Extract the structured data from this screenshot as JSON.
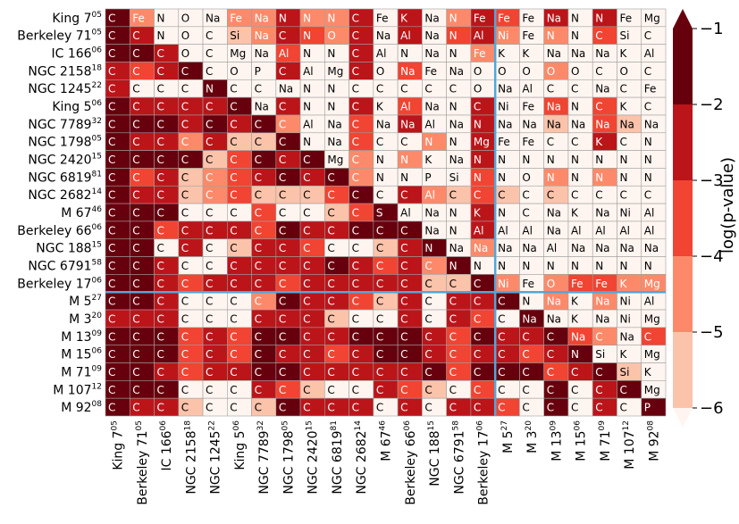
{
  "chart_data": {
    "type": "heatmap",
    "title": "",
    "colorbar_label": "log(p-value)",
    "colorbar_ticks": [
      "−1",
      "−2",
      "−3",
      "−4",
      "−5",
      "−6"
    ],
    "colorbar_levels": [
      -1,
      -2,
      -3,
      -4,
      -5,
      -6
    ],
    "colors": [
      "#67000d",
      "#bb151a",
      "#f14432",
      "#fc8a6a",
      "#fcc3ab",
      "#fff5f0"
    ],
    "divider_color": "#4ea8dc",
    "dark_text_color": "#000000",
    "light_text_color": "#ffffff",
    "row_labels": [
      {
        "name": "King 7",
        "sup": "05"
      },
      {
        "name": "Berkeley 71",
        "sup": "05"
      },
      {
        "name": "IC 166",
        "sup": "06"
      },
      {
        "name": "NGC 2158",
        "sup": "18"
      },
      {
        "name": "NGC 1245",
        "sup": "22"
      },
      {
        "name": "King 5",
        "sup": "06"
      },
      {
        "name": "NGC 7789",
        "sup": "32"
      },
      {
        "name": "NGC 1798",
        "sup": "05"
      },
      {
        "name": "NGC 2420",
        "sup": "15"
      },
      {
        "name": "NGC 6819",
        "sup": "81"
      },
      {
        "name": "NGC 2682",
        "sup": "14"
      },
      {
        "name": "M 67",
        "sup": "46"
      },
      {
        "name": "Berkeley 66",
        "sup": "06"
      },
      {
        "name": "NGC 188",
        "sup": "15"
      },
      {
        "name": "NGC 6791",
        "sup": "58"
      },
      {
        "name": "Berkeley 17",
        "sup": "06"
      },
      {
        "name": "M 5",
        "sup": "27"
      },
      {
        "name": "M 3",
        "sup": "20"
      },
      {
        "name": "M 13",
        "sup": "09"
      },
      {
        "name": "M 15",
        "sup": "06"
      },
      {
        "name": "M 71",
        "sup": "09"
      },
      {
        "name": "M 107",
        "sup": "12"
      },
      {
        "name": "M 92",
        "sup": "08"
      }
    ],
    "col_labels": [
      {
        "name": "King 7",
        "sup": "05"
      },
      {
        "name": "Berkeley 71",
        "sup": "05"
      },
      {
        "name": "IC 166",
        "sup": "06"
      },
      {
        "name": "NGC 2158",
        "sup": "18"
      },
      {
        "name": "NGC 1245",
        "sup": "22"
      },
      {
        "name": "King 5",
        "sup": "06"
      },
      {
        "name": "NGC 7789",
        "sup": "32"
      },
      {
        "name": "NGC 1798",
        "sup": "05"
      },
      {
        "name": "NGC 2420",
        "sup": "15"
      },
      {
        "name": "NGC 6819",
        "sup": "81"
      },
      {
        "name": "NGC 2682",
        "sup": "14"
      },
      {
        "name": "M 67",
        "sup": "46"
      },
      {
        "name": "Berkeley 66",
        "sup": "06"
      },
      {
        "name": "NGC 188",
        "sup": "15"
      },
      {
        "name": "NGC 6791",
        "sup": "58"
      },
      {
        "name": "Berkeley 17",
        "sup": "06"
      },
      {
        "name": "M 5",
        "sup": "27"
      },
      {
        "name": "M 3",
        "sup": "20"
      },
      {
        "name": "M 13",
        "sup": "09"
      },
      {
        "name": "M 15",
        "sup": "06"
      },
      {
        "name": "M 71",
        "sup": "09"
      },
      {
        "name": "M 107",
        "sup": "12"
      },
      {
        "name": "M 92",
        "sup": "08"
      }
    ],
    "cell_labels": [
      [
        "C",
        "Fe",
        "N",
        "O",
        "Na",
        "Fe",
        "Na",
        "N",
        "N",
        "N",
        "C",
        "Fe",
        "K",
        "Na",
        "N",
        "Fe",
        "Fe",
        "Fe",
        "Na",
        "N",
        "N",
        "Fe",
        "Mg"
      ],
      [
        "C",
        "C",
        "N",
        "O",
        "C",
        "Si",
        "Na",
        "C",
        "N",
        "O",
        "C",
        "Na",
        "Al",
        "Na",
        "N",
        "Al",
        "Ni",
        "Fe",
        "N",
        "N",
        "C",
        "Si",
        "C"
      ],
      [
        "C",
        "C",
        "C",
        "O",
        "C",
        "Mg",
        "Na",
        "Al",
        "N",
        "N",
        "C",
        "Al",
        "N",
        "Na",
        "N",
        "Fe",
        "K",
        "K",
        "Na",
        "Na",
        "Na",
        "K",
        "Al"
      ],
      [
        "C",
        "C",
        "C",
        "C",
        "C",
        "O",
        "P",
        "C",
        "Al",
        "Mg",
        "C",
        "O",
        "Na",
        "Fe",
        "Na",
        "O",
        "O",
        "O",
        "O",
        "O",
        "C",
        "O",
        "C"
      ],
      [
        "C",
        "C",
        "C",
        "C",
        "N",
        "C",
        "C",
        "Na",
        "N",
        "N",
        "C",
        "C",
        "C",
        "C",
        "C",
        "O",
        "Na",
        "Al",
        "C",
        "C",
        "Na",
        "C",
        "Fe"
      ],
      [
        "C",
        "C",
        "C",
        "C",
        "C",
        "C",
        "Na",
        "C",
        "N",
        "N",
        "C",
        "K",
        "Al",
        "Na",
        "N",
        "C",
        "Ni",
        "Fe",
        "Na",
        "N",
        "C",
        "K",
        "C"
      ],
      [
        "C",
        "C",
        "C",
        "C",
        "C",
        "C",
        "C",
        "C",
        "Al",
        "Na",
        "C",
        "Na",
        "Na",
        "Al",
        "Na",
        "N",
        "Na",
        "Na",
        "Na",
        "Na",
        "Na",
        "Na",
        "Na"
      ],
      [
        "C",
        "C",
        "C",
        "C",
        "C",
        "C",
        "C",
        "C",
        "N",
        "Na",
        "C",
        "C",
        "C",
        "N",
        "N",
        "Mg",
        "Fe",
        "Fe",
        "C",
        "C",
        "K",
        "C",
        "N"
      ],
      [
        "C",
        "C",
        "C",
        "C",
        "C",
        "C",
        "C",
        "C",
        "C",
        "Mg",
        "C",
        "N",
        "N",
        "K",
        "Na",
        "N",
        "N",
        "N",
        "N",
        "N",
        "N",
        "N",
        "N"
      ],
      [
        "C",
        "C",
        "C",
        "C",
        "C",
        "C",
        "C",
        "C",
        "C",
        "C",
        "C",
        "N",
        "N",
        "P",
        "Si",
        "N",
        "N",
        "O",
        "N",
        "N",
        "N",
        "N",
        "N"
      ],
      [
        "C",
        "C",
        "C",
        "C",
        "C",
        "C",
        "C",
        "C",
        "C",
        "C",
        "C",
        "C",
        "C",
        "Al",
        "C",
        "C",
        "C",
        "C",
        "C",
        "C",
        "C",
        "C",
        "C"
      ],
      [
        "C",
        "C",
        "C",
        "C",
        "C",
        "C",
        "C",
        "C",
        "C",
        "C",
        "C",
        "S",
        "Al",
        "Na",
        "N",
        "K",
        "N",
        "C",
        "Na",
        "K",
        "Na",
        "Ni",
        "Al"
      ],
      [
        "C",
        "C",
        "C",
        "C",
        "C",
        "C",
        "C",
        "C",
        "C",
        "C",
        "C",
        "C",
        "C",
        "Na",
        "N",
        "Al",
        "Al",
        "Al",
        "Na",
        "Al",
        "Al",
        "Al",
        "Al"
      ],
      [
        "C",
        "C",
        "C",
        "C",
        "C",
        "C",
        "C",
        "C",
        "C",
        "C",
        "C",
        "C",
        "C",
        "N",
        "Na",
        "Na",
        "Na",
        "Na",
        "Al",
        "Na",
        "Na",
        "Na",
        "Na"
      ],
      [
        "C",
        "C",
        "C",
        "C",
        "C",
        "C",
        "C",
        "C",
        "C",
        "C",
        "C",
        "C",
        "C",
        "C",
        "N",
        "N",
        "N",
        "N",
        "N",
        "N",
        "N",
        "N",
        "N"
      ],
      [
        "C",
        "C",
        "C",
        "C",
        "C",
        "C",
        "C",
        "C",
        "C",
        "C",
        "C",
        "C",
        "C",
        "C",
        "C",
        "C",
        "Ni",
        "Fe",
        "O",
        "Fe",
        "Fe",
        "K",
        "Mg"
      ],
      [
        "C",
        "C",
        "C",
        "C",
        "C",
        "C",
        "C",
        "C",
        "C",
        "C",
        "C",
        "C",
        "C",
        "C",
        "C",
        "C",
        "C",
        "N",
        "Na",
        "K",
        "Na",
        "Ni",
        "Al"
      ],
      [
        "C",
        "C",
        "C",
        "C",
        "C",
        "C",
        "C",
        "C",
        "C",
        "C",
        "C",
        "C",
        "C",
        "C",
        "C",
        "C",
        "C",
        "Na",
        "Na",
        "K",
        "Na",
        "Ni",
        "Mg"
      ],
      [
        "C",
        "C",
        "C",
        "C",
        "C",
        "C",
        "C",
        "C",
        "C",
        "C",
        "C",
        "C",
        "C",
        "C",
        "C",
        "C",
        "C",
        "C",
        "C",
        "Na",
        "C",
        "Na",
        "C"
      ],
      [
        "C",
        "C",
        "C",
        "C",
        "C",
        "C",
        "C",
        "C",
        "C",
        "C",
        "C",
        "C",
        "C",
        "C",
        "C",
        "C",
        "C",
        "C",
        "C",
        "N",
        "Si",
        "K",
        "Mg"
      ],
      [
        "C",
        "C",
        "C",
        "C",
        "C",
        "C",
        "C",
        "C",
        "C",
        "C",
        "C",
        "C",
        "C",
        "C",
        "C",
        "C",
        "C",
        "C",
        "C",
        "C",
        "C",
        "Si",
        "K"
      ],
      [
        "C",
        "C",
        "C",
        "C",
        "C",
        "C",
        "C",
        "C",
        "C",
        "C",
        "C",
        "C",
        "C",
        "C",
        "C",
        "C",
        "C",
        "C",
        "C",
        "C",
        "C",
        "C",
        "Mg"
      ],
      [
        "C",
        "C",
        "C",
        "C",
        "C",
        "C",
        "C",
        "C",
        "C",
        "C",
        "C",
        "C",
        "C",
        "C",
        "C",
        "C",
        "C",
        "C",
        "C",
        "C",
        "C",
        "C",
        "P"
      ]
    ],
    "cell_levels": [
      [
        1,
        4,
        6,
        6,
        6,
        4,
        4,
        2,
        4,
        4,
        2,
        6,
        2,
        6,
        4,
        2,
        3,
        6,
        2,
        6,
        2,
        6,
        6
      ],
      [
        1,
        2,
        6,
        6,
        6,
        5,
        4,
        2,
        3,
        4,
        2,
        6,
        2,
        6,
        3,
        2,
        4,
        6,
        4,
        6,
        3,
        6,
        6
      ],
      [
        1,
        1,
        2,
        6,
        6,
        6,
        6,
        3,
        6,
        6,
        2,
        6,
        6,
        6,
        6,
        4,
        6,
        6,
        6,
        6,
        6,
        6,
        6
      ],
      [
        2,
        3,
        2,
        1,
        6,
        6,
        6,
        2,
        6,
        6,
        2,
        6,
        3,
        6,
        6,
        6,
        6,
        6,
        4,
        6,
        6,
        6,
        6
      ],
      [
        2,
        6,
        6,
        6,
        1,
        6,
        6,
        6,
        6,
        6,
        6,
        6,
        6,
        6,
        6,
        6,
        6,
        6,
        6,
        6,
        6,
        6,
        6
      ],
      [
        1,
        2,
        2,
        2,
        2,
        1,
        6,
        2,
        6,
        6,
        2,
        6,
        3,
        6,
        6,
        2,
        6,
        6,
        3,
        6,
        3,
        6,
        6
      ],
      [
        1,
        1,
        1,
        2,
        1,
        2,
        1,
        4,
        6,
        6,
        3,
        6,
        2,
        6,
        6,
        2,
        6,
        6,
        5,
        6,
        3,
        5,
        6
      ],
      [
        1,
        2,
        2,
        4,
        2,
        5,
        5,
        1,
        6,
        6,
        3,
        6,
        6,
        4,
        6,
        2,
        6,
        6,
        6,
        6,
        2,
        6,
        6
      ],
      [
        1,
        1,
        1,
        1,
        5,
        3,
        1,
        2,
        1,
        6,
        4,
        6,
        4,
        6,
        6,
        2,
        6,
        6,
        6,
        6,
        6,
        6,
        6
      ],
      [
        1,
        3,
        2,
        5,
        4,
        3,
        2,
        1,
        2,
        1,
        4,
        6,
        6,
        6,
        6,
        3,
        6,
        6,
        4,
        6,
        4,
        6,
        6
      ],
      [
        1,
        2,
        2,
        5,
        4,
        3,
        5,
        5,
        5,
        3,
        1,
        6,
        2,
        4,
        5,
        3,
        5,
        6,
        5,
        6,
        6,
        6,
        6
      ],
      [
        1,
        1,
        1,
        6,
        6,
        6,
        3,
        6,
        6,
        5,
        3,
        1,
        6,
        6,
        6,
        2,
        6,
        6,
        6,
        6,
        6,
        6,
        6
      ],
      [
        1,
        1,
        3,
        2,
        2,
        2,
        3,
        1,
        2,
        2,
        1,
        1,
        1,
        6,
        6,
        2,
        6,
        6,
        6,
        6,
        6,
        6,
        6
      ],
      [
        1,
        1,
        6,
        2,
        6,
        5,
        2,
        2,
        3,
        6,
        6,
        5,
        2,
        1,
        6,
        4,
        6,
        6,
        6,
        6,
        6,
        6,
        6
      ],
      [
        1,
        1,
        2,
        6,
        6,
        2,
        2,
        2,
        2,
        1,
        2,
        3,
        2,
        4,
        1,
        6,
        6,
        6,
        6,
        6,
        6,
        6,
        6
      ],
      [
        1,
        1,
        2,
        3,
        2,
        2,
        2,
        3,
        2,
        2,
        2,
        2,
        2,
        5,
        5,
        1,
        4,
        6,
        4,
        3,
        3,
        4,
        4
      ],
      [
        1,
        1,
        2,
        6,
        6,
        6,
        4,
        1,
        2,
        2,
        3,
        5,
        2,
        6,
        2,
        2,
        1,
        6,
        4,
        6,
        4,
        6,
        6
      ],
      [
        2,
        2,
        2,
        6,
        6,
        6,
        2,
        2,
        2,
        5,
        6,
        6,
        2,
        6,
        2,
        3,
        6,
        1,
        6,
        6,
        6,
        6,
        6
      ],
      [
        1,
        1,
        1,
        3,
        2,
        3,
        1,
        1,
        2,
        2,
        1,
        1,
        1,
        2,
        3,
        1,
        2,
        2,
        1,
        3,
        4,
        6,
        3
      ],
      [
        1,
        1,
        1,
        3,
        2,
        3,
        1,
        2,
        2,
        3,
        2,
        1,
        1,
        2,
        3,
        2,
        2,
        3,
        2,
        1,
        6,
        6,
        6
      ],
      [
        1,
        1,
        2,
        3,
        2,
        2,
        1,
        1,
        2,
        2,
        2,
        2,
        2,
        1,
        3,
        1,
        1,
        1,
        3,
        2,
        1,
        5,
        6
      ],
      [
        1,
        1,
        1,
        6,
        6,
        6,
        2,
        3,
        5,
        6,
        6,
        2,
        3,
        5,
        6,
        3,
        6,
        6,
        1,
        6,
        2,
        1,
        6
      ],
      [
        1,
        2,
        2,
        5,
        6,
        6,
        5,
        1,
        2,
        2,
        2,
        6,
        2,
        6,
        2,
        2,
        3,
        6,
        1,
        6,
        2,
        6,
        1
      ]
    ],
    "divider_after_index": 15
  }
}
